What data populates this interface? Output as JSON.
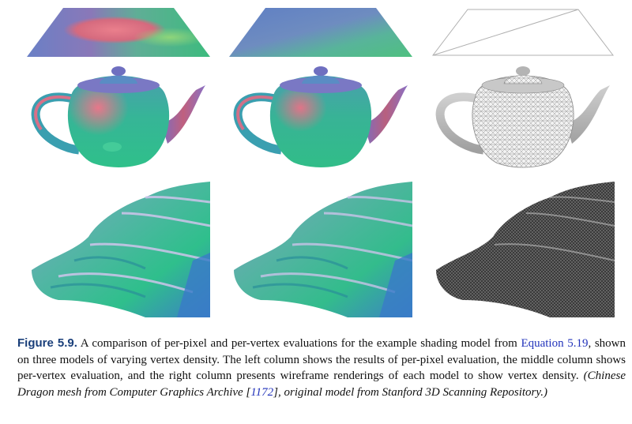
{
  "figure": {
    "columns": [
      "per-pixel evaluation",
      "per-vertex evaluation",
      "wireframe rendering"
    ],
    "rows": [
      "triangle strip",
      "teapot",
      "Chinese Dragon"
    ],
    "caption": {
      "label": "Figure 5.9.",
      "text_1": "A comparison of per-pixel and per-vertex evaluations for the example shading model from",
      "link": "Equation 5.19",
      "text_2": ", shown on three models of varying vertex density. The left column shows the results of per-pixel evaluation, the middle column shows per-vertex evaluation, and the right column presents wireframe renderings of each model to show vertex density.",
      "credit_1": "(Chinese Dragon mesh from Computer Graphics Archive [",
      "credit_ref": "1172",
      "credit_2": "], original model from Stanford 3D Scanning Repository.)"
    }
  },
  "colors": {
    "fig_label": "#1a3f7a",
    "link": "#2233bb",
    "teal": "#33b898",
    "pink": "#d9607e",
    "purple": "#7c6fc2",
    "wire": "#9a9a9a"
  }
}
